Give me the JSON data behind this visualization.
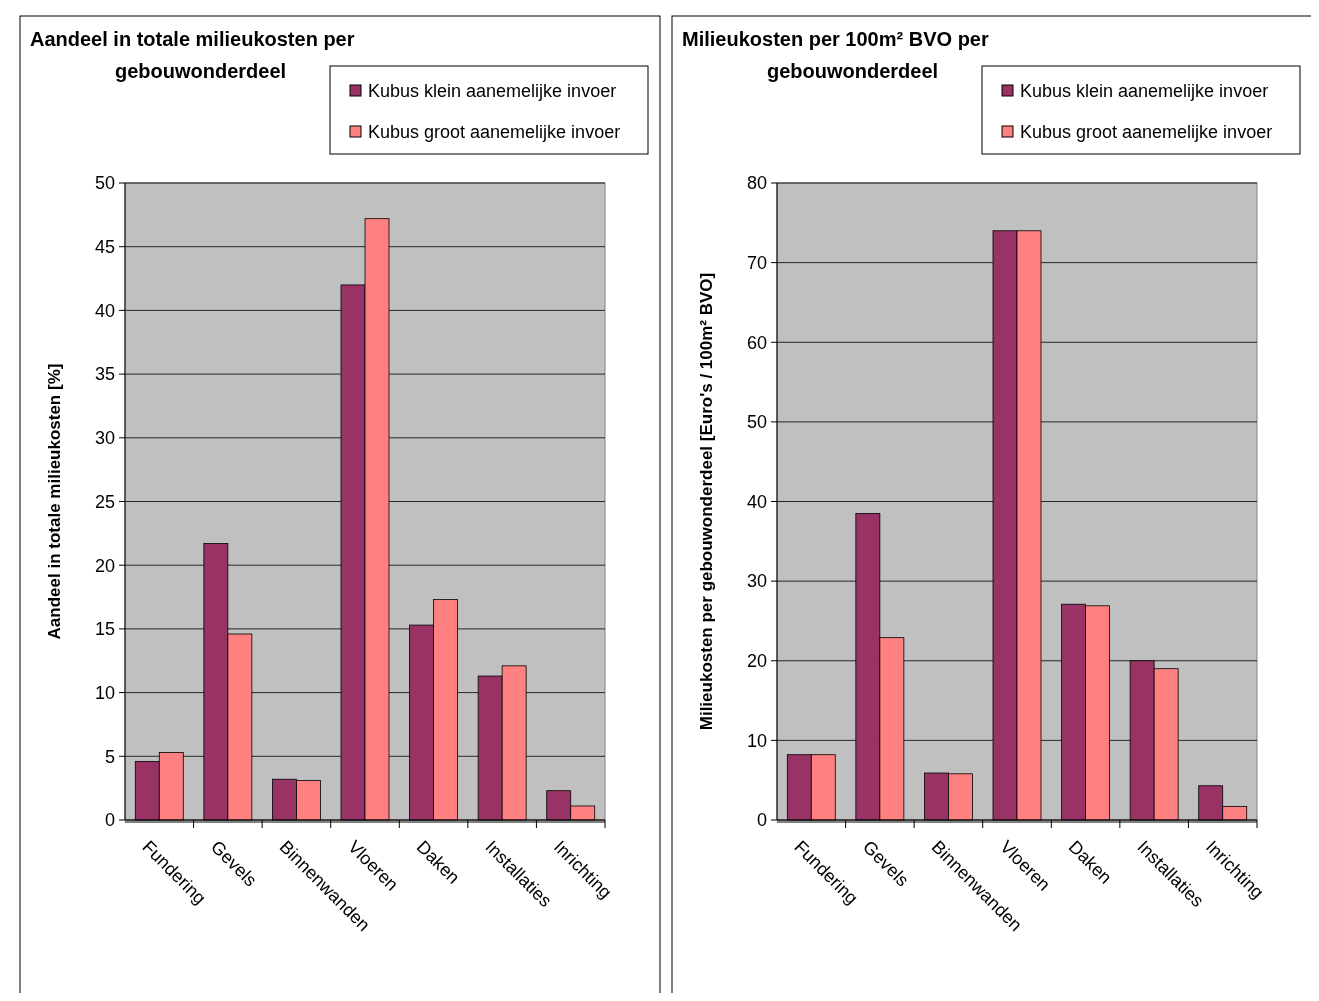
{
  "chart_data": [
    {
      "type": "bar",
      "title": "Aandeel in totale milieukosten per gebouwonderdeel",
      "ylabel": "Aandeel in totale milieukosten [%]",
      "categories": [
        "Fundering",
        "Gevels",
        "Binnenwanden",
        "Vloeren",
        "Daken",
        "Installaties",
        "Inrichting"
      ],
      "series": [
        {
          "name": "Kubus klein aanemelijke invoer",
          "color": "#993366",
          "values": [
            4.6,
            21.7,
            3.2,
            42,
            15.3,
            11.3,
            2.3
          ]
        },
        {
          "name": "Kubus groot aanemelijke invoer",
          "color": "#ff8080",
          "values": [
            5.3,
            14.6,
            3.1,
            47.2,
            17.3,
            12.1,
            1.1
          ]
        }
      ],
      "ylim": [
        0,
        50
      ],
      "yticks": [
        0,
        5,
        10,
        15,
        20,
        25,
        30,
        35,
        40,
        45,
        50
      ],
      "grid": "y",
      "legend": "top right"
    },
    {
      "type": "bar",
      "title": "Milieukosten per 100m² BVO per gebouwonderdeel",
      "ylabel": "Milieukosten per gebouwonderdeel [Euro's / 100m² BVO]",
      "categories": [
        "Fundering",
        "Gevels",
        "Binnenwanden",
        "Vloeren",
        "Daken",
        "Installaties",
        "Inrichting"
      ],
      "series": [
        {
          "name": "Kubus klein aanemelijke invoer",
          "color": "#993366",
          "values": [
            8.2,
            38.5,
            5.9,
            74,
            27.1,
            20,
            4.3
          ]
        },
        {
          "name": "Kubus groot aanemelijke invoer",
          "color": "#ff8080",
          "values": [
            8.2,
            22.9,
            5.8,
            74,
            26.9,
            19,
            1.7
          ]
        }
      ],
      "ylim": [
        0,
        80
      ],
      "yticks": [
        0,
        10,
        20,
        30,
        40,
        50,
        60,
        70,
        80
      ],
      "grid": "y",
      "legend": "top right"
    }
  ]
}
